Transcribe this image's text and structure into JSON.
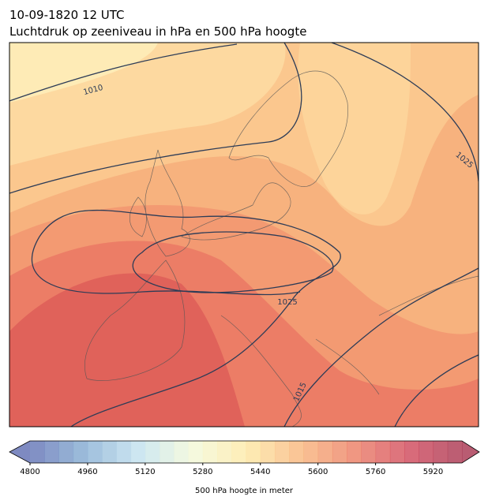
{
  "title": "10-09-1820 12 UTC",
  "subtitle": "Luchtdruk op zeeniveau in hPa en 500 hPa hoogte",
  "isobar_labels": [
    1010,
    1025,
    1025,
    1015
  ],
  "colorbar": {
    "label": "500 hPa hoogte in meter",
    "lim": [
      4800,
      6000
    ],
    "step": 40,
    "ticks": [
      4800,
      4960,
      5120,
      5280,
      5440,
      5600,
      5760,
      5920
    ],
    "cmap": [
      "#5e6db2",
      "#84acd2",
      "#c0e0ee",
      "#f2f9d8",
      "#fde9a4",
      "#f9b57a",
      "#ec7d63",
      "#d1475a",
      "#a8334f"
    ]
  }
}
